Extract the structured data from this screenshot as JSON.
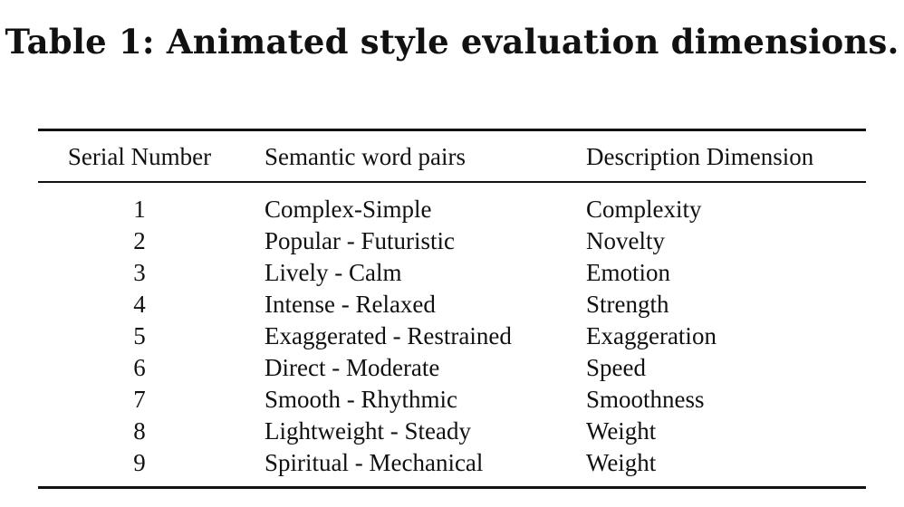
{
  "caption": "Table 1: Animated style evaluation dimensions.",
  "table": {
    "headers": {
      "serial": "Serial Number",
      "pair": "Semantic word pairs",
      "description": "Description Dimension"
    },
    "rows": [
      {
        "serial": "1",
        "pair": "Complex-Simple",
        "description": "Complexity"
      },
      {
        "serial": "2",
        "pair": "Popular - Futuristic",
        "description": "Novelty"
      },
      {
        "serial": "3",
        "pair": "Lively - Calm",
        "description": "Emotion"
      },
      {
        "serial": "4",
        "pair": "Intense - Relaxed",
        "description": "Strength"
      },
      {
        "serial": "5",
        "pair": "Exaggerated - Restrained",
        "description": "Exaggeration"
      },
      {
        "serial": "6",
        "pair": "Direct - Moderate",
        "description": "Speed"
      },
      {
        "serial": "7",
        "pair": "Smooth - Rhythmic",
        "description": "Smoothness"
      },
      {
        "serial": "8",
        "pair": "Lightweight - Steady",
        "description": "Weight"
      },
      {
        "serial": "9",
        "pair": "Spiritual - Mechanical",
        "description": "Weight"
      }
    ]
  }
}
